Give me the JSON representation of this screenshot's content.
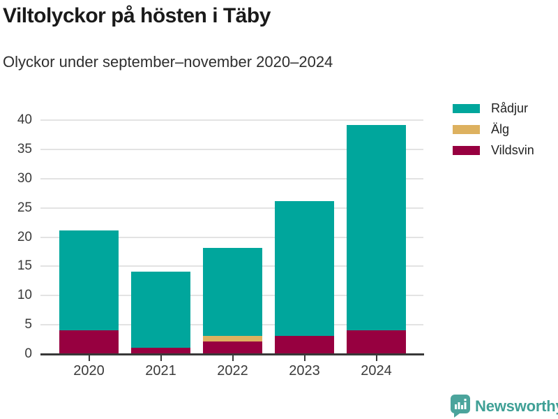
{
  "title": "Viltolyckor på hösten i Täby",
  "subtitle": "Olyckor under september–november 2020–2024",
  "chart_data": {
    "type": "bar",
    "stacked": true,
    "title": "Viltolyckor på hösten i Täby",
    "subtitle": "Olyckor under september–november 2020–2024",
    "categories": [
      "2020",
      "2021",
      "2022",
      "2023",
      "2024"
    ],
    "series": [
      {
        "name": "Rådjur",
        "color": "#00A69C",
        "values": [
          17,
          13,
          15,
          23,
          35
        ]
      },
      {
        "name": "Älg",
        "color": "#DDB15F",
        "values": [
          0,
          0,
          1,
          0,
          0
        ]
      },
      {
        "name": "Vildsvin",
        "color": "#970040",
        "values": [
          4,
          1,
          2,
          3,
          4
        ]
      }
    ],
    "stack_order_bottom_to_top": [
      "Vildsvin",
      "Älg",
      "Rådjur"
    ],
    "totals": [
      21,
      14,
      18,
      26,
      39
    ],
    "xlabel": "",
    "ylabel": "",
    "ylim": [
      0,
      40
    ],
    "ytick_step": 5,
    "grid": true,
    "legend_position": "top-right"
  },
  "colors": {
    "grid": "#e3e3e3",
    "axis": "#383838",
    "axis_text": "#3a3a3a",
    "brand_teal": "#3FA096"
  },
  "branding": {
    "logo_text": "Newsworthy",
    "logo_icon": "bar-chart-speech-bubble-icon"
  }
}
